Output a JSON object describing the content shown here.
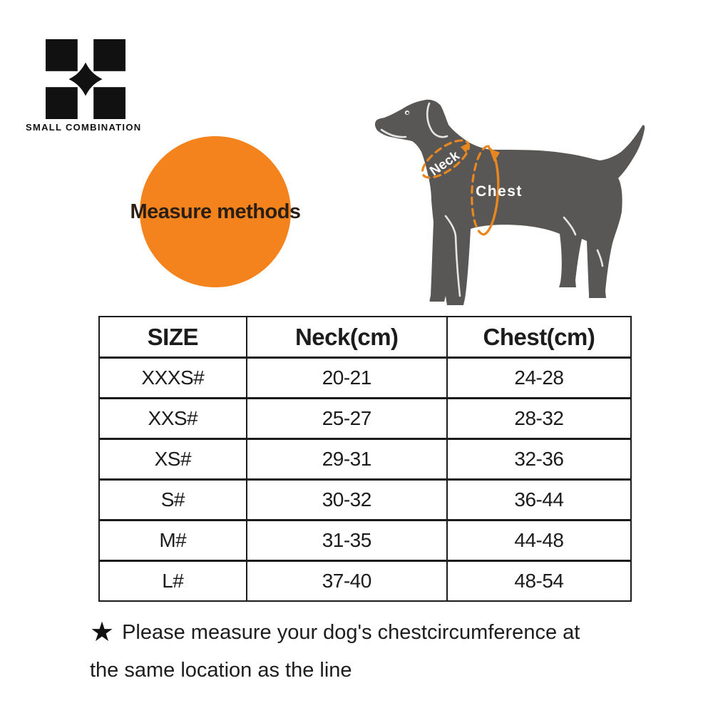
{
  "brand": {
    "wordmark": "SMALL COMBINATION",
    "logo_color": "#111111"
  },
  "measure_badge": {
    "label": "Measure methods",
    "bg_color": "#F5831D"
  },
  "dog_diagram": {
    "neck_label": "Neck",
    "chest_label": "Chest",
    "silhouette_color": "#595755",
    "marker_color": "#E8871F",
    "label_color": "#ffffff"
  },
  "size_table": {
    "headers": [
      "SIZE",
      "Neck(cm)",
      "Chest(cm)"
    ],
    "rows": [
      [
        "XXXS#",
        "20-21",
        "24-28"
      ],
      [
        "XXS#",
        "25-27",
        "28-32"
      ],
      [
        "XS#",
        "29-31",
        "32-36"
      ],
      [
        "S#",
        "30-32",
        "36-44"
      ],
      [
        "M#",
        "31-35",
        "44-48"
      ],
      [
        "L#",
        "37-40",
        "48-54"
      ]
    ]
  },
  "footnote": {
    "star": "★",
    "line1": "Please measure your dog's chestcircumference at",
    "line2": "the same location as the line"
  }
}
